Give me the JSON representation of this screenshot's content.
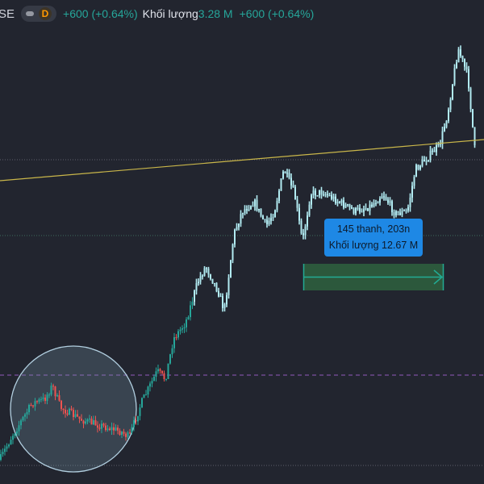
{
  "legend": {
    "symbol_fragment": "SE",
    "interval": "D",
    "change": "+600 (+0.64%)",
    "volume_label": "Khối lượng",
    "volume_value": "3.28 M",
    "volume_change": "+600 (+0.64%)"
  },
  "measure_tooltip": {
    "line1": "145 thanh, 203n",
    "line2": "Khối lượng 12.67 M"
  },
  "colors": {
    "background": "#22252f",
    "up": "#26a69a",
    "down": "#ef5350",
    "selected_bars": "#b2ebf2",
    "trend_line": "#c9b64a",
    "measure_box": "#2e5e3e",
    "measure_arrow": "#22ab94",
    "tooltip": "#1e88e5",
    "circle": "#b2cfe0",
    "purple_line": "#7b4fa0"
  },
  "chart_data": {
    "type": "candlestick",
    "title": "",
    "drawings": [
      "trend-line",
      "horizontal-lines",
      "circle",
      "date-price-range",
      "highlighted-bars"
    ]
  }
}
